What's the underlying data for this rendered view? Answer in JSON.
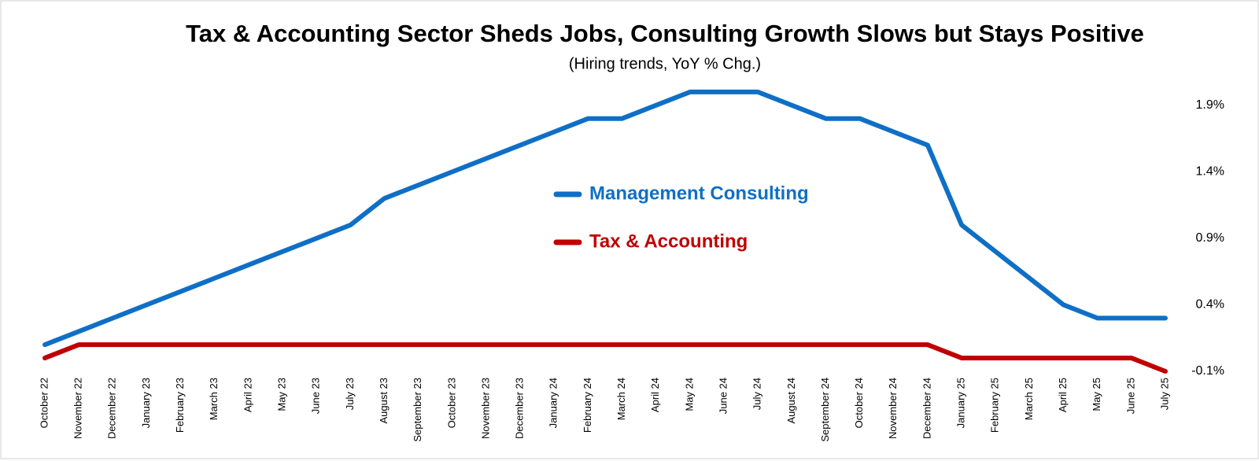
{
  "chart_data": {
    "type": "line",
    "title": "Tax & Accounting Sector Sheds Jobs, Consulting Growth Slows but Stays Positive",
    "subtitle": "(Hiring trends, YoY % Chg.)",
    "categories": [
      "October 22",
      "November 22",
      "December 22",
      "January 23",
      "February 23",
      "March 23",
      "April 23",
      "May 23",
      "June 23",
      "July 23",
      "August 23",
      "September 23",
      "October 23",
      "November 23",
      "December 23",
      "January 24",
      "February 24",
      "March 24",
      "April 24",
      "May 24",
      "June 24",
      "July 24",
      "August 24",
      "September 24",
      "October 24",
      "November 24",
      "December 24",
      "January 25",
      "February 25",
      "March 25",
      "April 25",
      "May 25",
      "June 25",
      "July 25"
    ],
    "series": [
      {
        "name": "Management Consulting",
        "color": "#0f6fc6",
        "values": [
          0.1,
          0.2,
          0.3,
          0.4,
          0.5,
          0.6,
          0.7,
          0.8,
          0.9,
          1.0,
          1.2,
          1.3,
          1.4,
          1.5,
          1.6,
          1.7,
          1.8,
          1.8,
          1.9,
          2.0,
          2.0,
          2.0,
          1.9,
          1.8,
          1.8,
          1.7,
          1.6,
          1.0,
          0.8,
          0.6,
          0.4,
          0.3,
          0.3,
          0.3
        ]
      },
      {
        "name": "Tax & Accounting",
        "color": "#c00000",
        "values": [
          0.0,
          0.1,
          0.1,
          0.1,
          0.1,
          0.1,
          0.1,
          0.1,
          0.1,
          0.1,
          0.1,
          0.1,
          0.1,
          0.1,
          0.1,
          0.1,
          0.1,
          0.1,
          0.1,
          0.1,
          0.1,
          0.1,
          0.1,
          0.1,
          0.1,
          0.1,
          0.1,
          0.0,
          0.0,
          0.0,
          0.0,
          0.0,
          0.0,
          -0.1
        ]
      }
    ],
    "ylim": [
      -0.1,
      2.1
    ],
    "yticks": [
      {
        "value": -0.1,
        "label": "-0.1%"
      },
      {
        "value": 0.4,
        "label": "0.4%"
      },
      {
        "value": 0.9,
        "label": "0.9%"
      },
      {
        "value": 1.4,
        "label": "1.4%"
      },
      {
        "value": 1.9,
        "label": "1.9%"
      }
    ],
    "y_axis_side": "right",
    "grid": false,
    "legend": "center"
  }
}
